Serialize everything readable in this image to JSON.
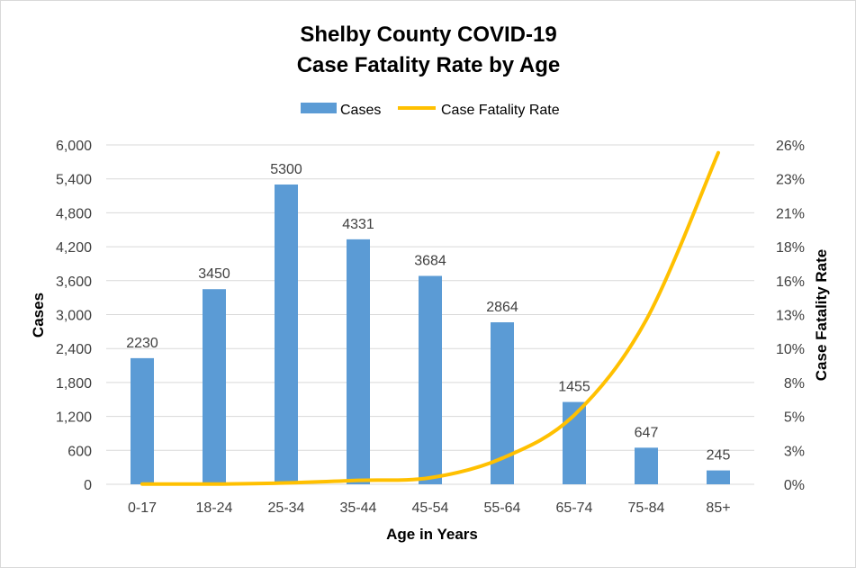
{
  "chart_data": {
    "type": "bar",
    "title_lines": [
      "Shelby County COVID-19",
      "Case Fatality Rate by Age"
    ],
    "xlabel": "Age in Years",
    "ylabel": "Cases",
    "y2label": "Case Fatality Rate",
    "categories": [
      "0-17",
      "18-24",
      "25-34",
      "35-44",
      "45-54",
      "55-64",
      "65-74",
      "75-84",
      "85+"
    ],
    "ylim": [
      0,
      6000
    ],
    "y_ticks": [
      0,
      600,
      1200,
      1800,
      2400,
      3000,
      3600,
      4200,
      4800,
      5400,
      6000
    ],
    "y_tick_labels": [
      "0",
      "600",
      "1,200",
      "1,800",
      "2,400",
      "3,000",
      "3,600",
      "4,200",
      "4,800",
      "5,400",
      "6,000"
    ],
    "y2lim": [
      0,
      0.26
    ],
    "y2_tick_labels": [
      "0%",
      "3%",
      "5%",
      "8%",
      "10%",
      "13%",
      "16%",
      "18%",
      "21%",
      "23%",
      "26%"
    ],
    "grid": true,
    "legend_position": "top-center",
    "series": [
      {
        "name": "Cases",
        "kind": "bar",
        "axis": "left",
        "color": "#5b9bd5",
        "values": [
          2230,
          3450,
          5300,
          4331,
          3684,
          2864,
          1455,
          647,
          245
        ],
        "data_labels": [
          "2230",
          "3450",
          "5300",
          "4331",
          "3684",
          "2864",
          "1455",
          "647",
          "245"
        ]
      },
      {
        "name": "Case Fatality Rate",
        "kind": "line",
        "axis": "right",
        "color": "#ffc000",
        "values": [
          0.0002,
          0.0002,
          0.001,
          0.003,
          0.005,
          0.02,
          0.053,
          0.126,
          0.254
        ]
      }
    ]
  }
}
